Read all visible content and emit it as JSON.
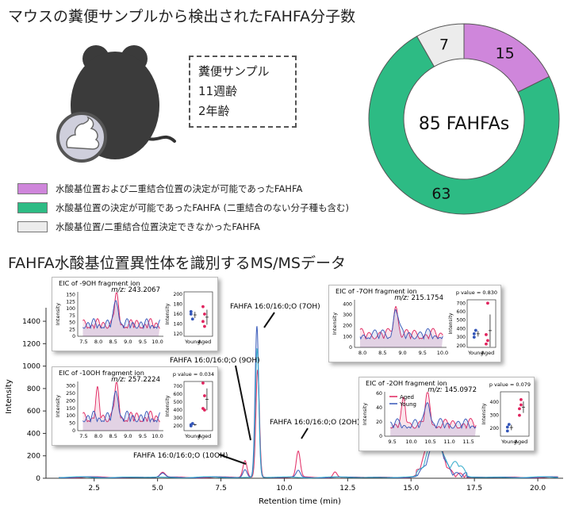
{
  "header_title": "マウスの糞便サンプルから検出されたFAHFA分子数",
  "sample_box": {
    "lines": [
      "糞便サンプル",
      "11週齢",
      "2年齢"
    ]
  },
  "donut": {
    "center_label": "85 FAHFAs",
    "segments": [
      {
        "value": 15,
        "label": "15",
        "color": "#cf86db"
      },
      {
        "value": 63,
        "label": "63",
        "color": "#2dbb84"
      },
      {
        "value": 7,
        "label": "7",
        "color": "#ececec"
      }
    ]
  },
  "legend": [
    {
      "label": "水酸基位置および二重結合位置の決定が可能であったFAHFA",
      "color": "#cf86db"
    },
    {
      "label": "水酸基位置の決定が可能であったFAHFA (二重結合のない分子種も含む)",
      "color": "#2dbb84"
    },
    {
      "label": "水酸基位置/二重結合位置決定できなかったFAHFA",
      "color": "#ececec"
    }
  ],
  "section2_title": "FAHFA水酸基位置異性体を識別するMS/MSデータ",
  "main_chart": {
    "xlabel": "Retention time (min)",
    "ylabel": "Intensity",
    "xlim": [
      0.6,
      21.0
    ],
    "ylim": [
      0,
      1450
    ],
    "x_ticks": [
      "2.5",
      "5.0",
      "7.5",
      "10.0",
      "12.5",
      "15.0",
      "17.5",
      "20.0"
    ],
    "y_ticks": [
      "0",
      "200",
      "400",
      "600",
      "800",
      "1000",
      "1200",
      "1400"
    ],
    "series": [
      {
        "color": "#e0245e",
        "peaks": [
          [
            5.2,
            45,
            0.1
          ],
          [
            8.45,
            150,
            0.08
          ],
          [
            8.95,
            960,
            0.07
          ],
          [
            10.55,
            230,
            0.08
          ],
          [
            12.0,
            50,
            0.08
          ],
          [
            15.9,
            380,
            0.3
          ]
        ]
      },
      {
        "color": "#3456b8",
        "peaks": [
          [
            5.2,
            35,
            0.1
          ],
          [
            8.45,
            70,
            0.08
          ],
          [
            8.92,
            1350,
            0.07
          ],
          [
            10.55,
            60,
            0.08
          ],
          [
            16.0,
            300,
            0.28
          ]
        ]
      },
      {
        "color": "#2aa7c9",
        "peaks": [
          [
            8.93,
            1150,
            0.07
          ],
          [
            15.95,
            350,
            0.28
          ],
          [
            16.8,
            100,
            0.2
          ]
        ]
      }
    ],
    "annotations": [
      "FAHFA 16:0/16:0;O (7OH)",
      "FAHFA 16:0/16:0;O (9OH)",
      "FAHFA 16:0/16:0;O (2OH)",
      "FAHFA 16:0/16:0;O (10OH)"
    ]
  },
  "insets": [
    {
      "title": "EIC of -9OH fragment ion",
      "mz_label": "m/z:",
      "mz_value": "243.2067",
      "pvalue": "",
      "legend": [],
      "chrom": {
        "xlim": [
          7.3,
          10.2
        ],
        "ylim": [
          0,
          160
        ],
        "xticks": [
          "7.5",
          "8.0",
          "8.5",
          "9.0",
          "9.5",
          "10.0"
        ],
        "yticks": [
          "0",
          "25",
          "50",
          "75",
          "100",
          "125",
          "150"
        ],
        "ylabel": "Intensity"
      },
      "box": {
        "ylim": [
          115,
          205
        ],
        "yticks": [
          "120",
          "140",
          "160",
          "180",
          "200"
        ],
        "ylabel": "Intensity",
        "groups": [
          "Young",
          "Aged"
        ],
        "young": [
          165,
          150,
          160
        ],
        "aged": [
          145,
          160,
          175,
          135
        ]
      }
    },
    {
      "title": "EIC of -10OH fragment ion",
      "mz_label": "m/z:",
      "mz_value": "257.2224",
      "pvalue": "p value = 0.034",
      "legend": [],
      "chrom": {
        "xlim": [
          7.3,
          10.2
        ],
        "ylim": [
          0,
          330
        ],
        "xticks": [
          "7.5",
          "8.0",
          "8.5",
          "9.0",
          "9.5",
          "10.0"
        ],
        "yticks": [
          "0",
          "50",
          "100",
          "150",
          "200",
          "250",
          "300"
        ],
        "ylabel": "Intensity"
      },
      "box": {
        "ylim": [
          140,
          760
        ],
        "yticks": [
          "200",
          "300",
          "400",
          "500",
          "600",
          "700"
        ],
        "ylabel": "Intensity",
        "groups": [
          "Young",
          "Aged"
        ],
        "young": [
          200,
          230,
          215
        ],
        "aged": [
          420,
          580,
          740,
          400
        ]
      }
    },
    {
      "title": "EIC of -7OH fragment ion",
      "mz_label": "m/z:",
      "mz_value": "215.1754",
      "pvalue": "p value = 0.830",
      "legend": [],
      "chrom": {
        "xlim": [
          7.8,
          10.1
        ],
        "ylim": [
          0,
          440
        ],
        "xticks": [
          "8.0",
          "8.5",
          "9.0",
          "9.5",
          "10.0"
        ],
        "yticks": [
          "0",
          "100",
          "200",
          "300",
          "400"
        ],
        "ylabel": "Intensity"
      },
      "box": {
        "ylim": [
          180,
          740
        ],
        "yticks": [
          "200",
          "300",
          "400",
          "500",
          "600",
          "700"
        ],
        "ylabel": "Intensity",
        "groups": [
          "Young",
          "Aged"
        ],
        "young": [
          340,
          380,
          300
        ],
        "aged": [
          220,
          260,
          330,
          700
        ]
      }
    },
    {
      "title": "EIC of -2OH fragment ion",
      "mz_label": "m/z:",
      "mz_value": "145.0972",
      "pvalue": "p value = 0.079",
      "legend": [
        {
          "label": "Aged",
          "color": "#e0245e"
        },
        {
          "label": "Young",
          "color": "#3456b8"
        }
      ],
      "chrom": {
        "xlim": [
          9.3,
          11.8
        ],
        "ylim": [
          0,
          62
        ],
        "xticks": [
          "9.5",
          "10.0",
          "10.5",
          "11.0",
          "11.5"
        ],
        "yticks": [
          "0",
          "20",
          "40",
          "60"
        ],
        "ylabel": "Intensity"
      },
      "box": {
        "ylim": [
          140,
          480
        ],
        "yticks": [
          "200",
          "300",
          "400"
        ],
        "ylabel": "Intensity",
        "groups": [
          "Young",
          "Aged"
        ],
        "young": [
          210,
          230,
          180
        ],
        "aged": [
          300,
          380,
          350,
          420
        ]
      }
    }
  ]
}
